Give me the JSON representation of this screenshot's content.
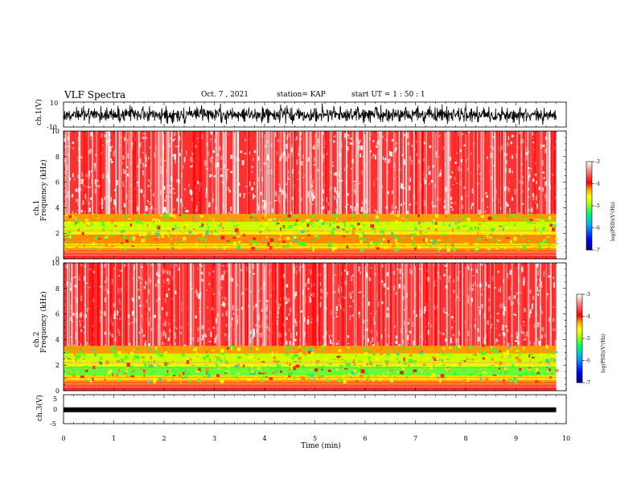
{
  "header": {
    "title": "VLF Spectra",
    "date": "Oct. 7 , 2021",
    "station": "station= KAP",
    "start": "start UT = 1 : 50 : 1"
  },
  "chart_data": [
    {
      "type": "line",
      "panel": "ch1-waveform",
      "ylabel": "ch.1(V)",
      "ylim": [
        -10,
        10
      ],
      "y_ticks": [
        "10",
        "-10"
      ],
      "xlim": [
        0,
        10
      ],
      "grid": false
    },
    {
      "type": "heatmap",
      "panel": "ch1-spectrogram",
      "ylabel": "ch.1\nFrequency (kHz)",
      "ylim": [
        0,
        10
      ],
      "y_ticks": [
        "0",
        "2",
        "4",
        "6",
        "8",
        "10"
      ],
      "xlim": [
        0,
        10
      ],
      "data_extent_min": 9.8,
      "colorbar": {
        "label": "log(PSD)(V²/Hz)",
        "range": [
          -7,
          -3
        ],
        "ticks": [
          "-3",
          "-4",
          "-5",
          "-6",
          "-7"
        ]
      }
    },
    {
      "type": "heatmap",
      "panel": "ch2-spectrogram",
      "ylabel": "ch.2\nFrequency (kHz)",
      "ylim": [
        0,
        10
      ],
      "y_ticks": [
        "0",
        "2",
        "4",
        "6",
        "8",
        "10"
      ],
      "xlim": [
        0,
        10
      ],
      "data_extent_min": 9.8,
      "colorbar": {
        "label": "log(PSD)(V²/Hz)",
        "range": [
          -7,
          -3
        ],
        "ticks": [
          "-3",
          "-4",
          "-5",
          "-6",
          "-7"
        ]
      }
    },
    {
      "type": "line",
      "panel": "ch3-waveform",
      "ylabel": "ch.3(V)",
      "ylim": [
        -5,
        5
      ],
      "y_ticks": [
        "5",
        "0",
        "-5"
      ],
      "xlim": [
        0,
        10
      ],
      "xlabel": "Time (min)",
      "x_ticks": [
        "0",
        "1",
        "2",
        "3",
        "4",
        "5",
        "6",
        "7",
        "8",
        "9",
        "10"
      ],
      "level_value": -0.2
    }
  ],
  "colors": {
    "background": "#ffffff",
    "trace": "#000000",
    "cmap": [
      "#00007f",
      "#0000ff",
      "#00aaff",
      "#00ff66",
      "#aaff00",
      "#ffff00",
      "#ffaa00",
      "#ff0000",
      "#ff8a8a",
      "#ffffff"
    ]
  }
}
